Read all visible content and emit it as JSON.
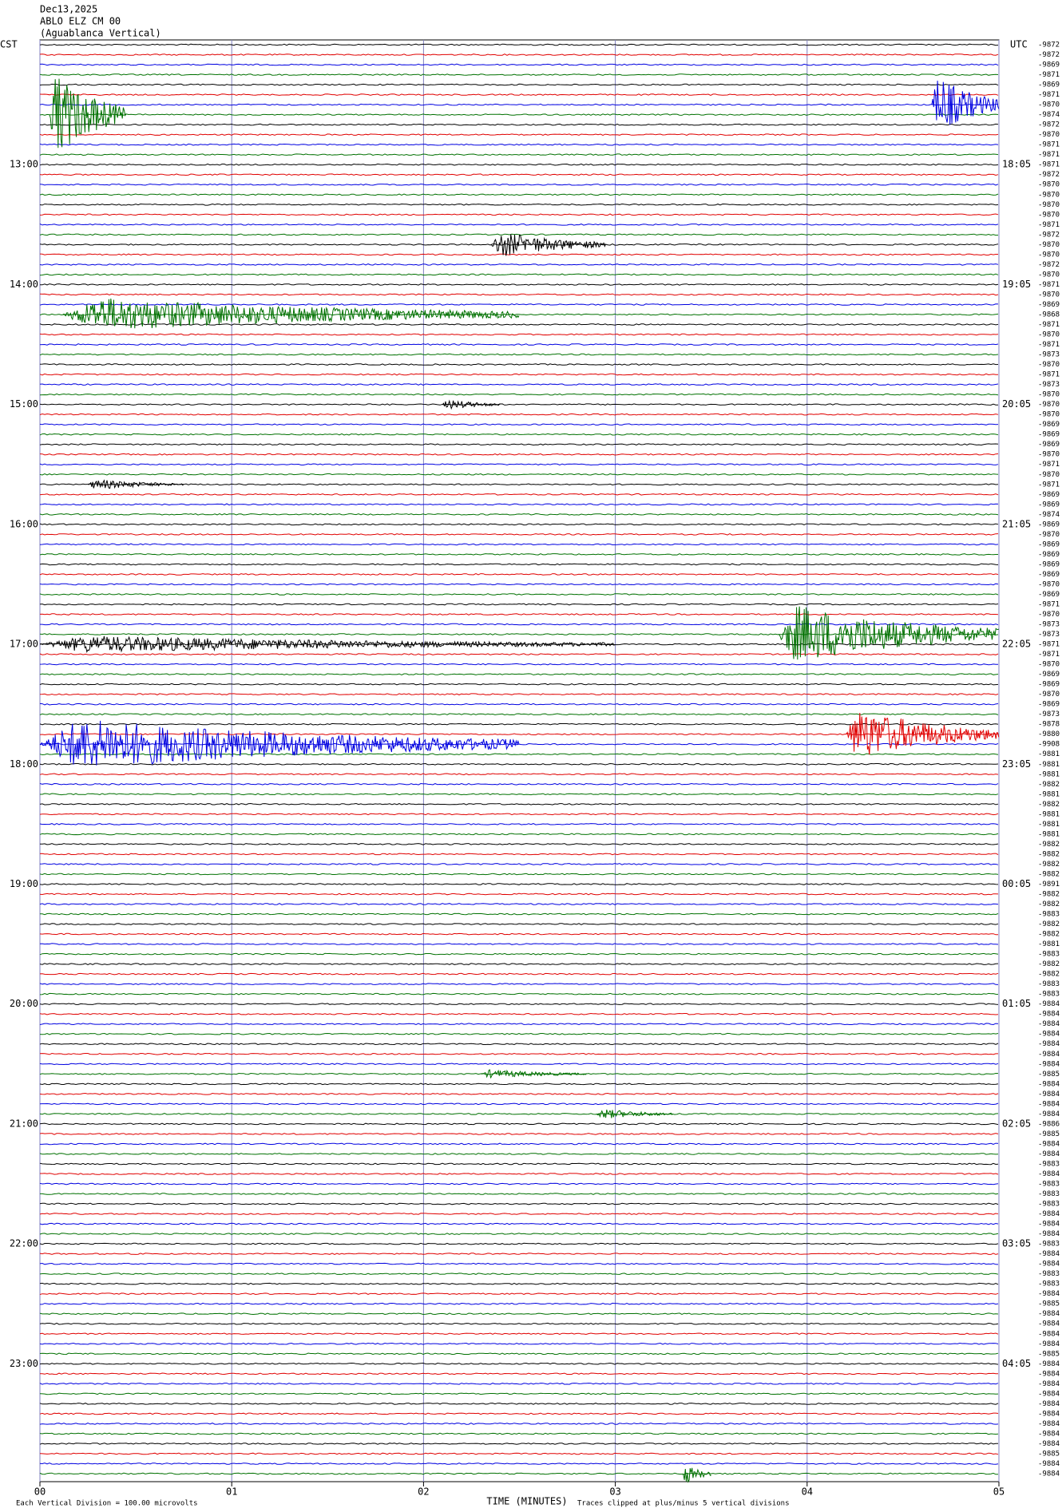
{
  "chart_data": {
    "type": "helicorder",
    "header": [
      "Dec13,2025",
      "ABLO ELZ CM 00",
      "(Aguablanca Vertical)"
    ],
    "left_axis_title": "CST",
    "right_axis_title": "UTC",
    "hours_cst": [
      "13:00",
      "14:00",
      "15:00",
      "16:00",
      "17:00",
      "18:00",
      "19:00",
      "20:00",
      "21:00",
      "22:00",
      "23:00"
    ],
    "hours_utc": [
      "18:05",
      "19:05",
      "20:05",
      "21:05",
      "22:05",
      "23:05",
      "00:05",
      "01:05",
      "02:05",
      "03:05",
      "04:05"
    ],
    "trace_colors": [
      "#000000",
      "#e00000",
      "#0000e0",
      "#007000"
    ],
    "trace_labels": [
      -9872,
      -9872,
      -9869,
      -9871,
      -9869,
      -9871,
      -9870,
      -9874,
      -9872,
      -9870,
      -9871,
      -9871,
      -9871,
      -9872,
      -9870,
      -9870,
      -9870,
      -9870,
      -9871,
      -9872,
      -9870,
      -9870,
      -9872,
      -9870,
      -9871,
      -9870,
      -9869,
      -9868,
      -9871,
      -9870,
      -9871,
      -9873,
      -9870,
      -9871,
      -9873,
      -9870,
      -9870,
      -9870,
      -9869,
      -9869,
      -9869,
      -9870,
      -9871,
      -9870,
      -9871,
      -9869,
      -9869,
      -9874,
      -9869,
      -9870,
      -9869,
      -9869,
      -9869,
      -9869,
      -9870,
      -9869,
      -9871,
      -9870,
      -9873,
      -9873,
      -9871,
      -9871,
      -9870,
      -9869,
      -9869,
      -9870,
      -9869,
      -9873,
      -9878,
      -9880,
      -9908,
      -9881,
      -9881,
      -9881,
      -9882,
      -9881,
      -9882,
      -9881,
      -9881,
      -9881,
      -9882,
      -9882,
      -9882,
      -9882,
      -9891,
      -9882,
      -9882,
      -9883,
      -9882,
      -9882,
      -9881,
      -9883,
      -9882,
      -9882,
      -9883,
      -9883,
      -9884,
      -9884,
      -9884,
      -9884,
      -9884,
      -9884,
      -9884,
      -9885,
      -9884,
      -9884,
      -9884,
      -9884,
      -9886,
      -9885,
      -9884,
      -9884,
      -9883,
      -9884,
      -9883,
      -9883,
      -9883,
      -9884,
      -9884,
      -9884,
      -9883,
      -9884,
      -9884,
      -9883,
      -9883,
      -9884,
      -9885,
      -9884,
      -9884,
      -9884,
      -9884,
      -9885,
      -9884,
      -9884,
      -9884,
      -9884,
      -9884,
      -9884,
      -9884,
      -9884,
      -9884,
      -9885,
      -9884,
      -9884
    ],
    "xlim": [
      0,
      5
    ],
    "xticks": [
      {
        "value": 0,
        "label": "00"
      },
      {
        "value": 1,
        "label": "01"
      },
      {
        "value": 2,
        "label": "02"
      },
      {
        "value": 3,
        "label": "03"
      },
      {
        "value": 4,
        "label": "04"
      },
      {
        "value": 5,
        "label": "05"
      }
    ],
    "xlabel": "TIME (MINUTES)",
    "footnote_left": "Each Vertical Division =  100.00 microvolts",
    "footnote_right": "Traces clipped at plus/minus 5 vertical divisions",
    "events": [
      {
        "trace": 7,
        "start": 0.05,
        "end": 0.45,
        "amplitude": 5
      },
      {
        "trace": 6,
        "start": 4.65,
        "end": 5,
        "amplitude": 3.5
      },
      {
        "trace": 20,
        "start": 2.35,
        "end": 2.95,
        "amplitude": 1.5
      },
      {
        "trace": 27,
        "start": 0.12,
        "end": 2.5,
        "amplitude": 2
      },
      {
        "trace": 36,
        "start": 2.1,
        "end": 2.4,
        "amplitude": 0.6
      },
      {
        "trace": 44,
        "start": 0.25,
        "end": 0.75,
        "amplitude": 0.6
      },
      {
        "trace": 59,
        "start": 3.85,
        "end": 5,
        "amplitude": 3.5
      },
      {
        "trace": 60,
        "start": 0,
        "end": 3,
        "amplitude": 1
      },
      {
        "trace": 69,
        "start": 4.2,
        "end": 5,
        "amplitude": 3
      },
      {
        "trace": 70,
        "start": 0,
        "end": 2.5,
        "amplitude": 3
      },
      {
        "trace": 103,
        "start": 2.3,
        "end": 2.85,
        "amplitude": 0.5
      },
      {
        "trace": 107,
        "start": 2.9,
        "end": 3.3,
        "amplitude": 0.6
      },
      {
        "trace": 143,
        "start": 3.35,
        "end": 3.5,
        "amplitude": 1.2
      }
    ]
  }
}
